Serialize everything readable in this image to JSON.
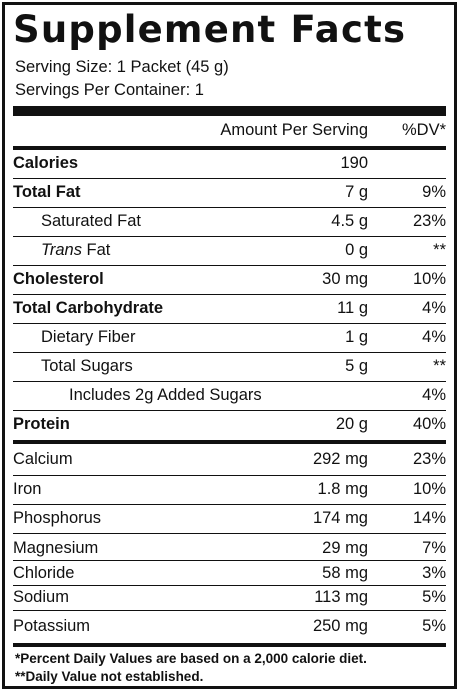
{
  "title": "Supplement Facts",
  "serving_size": "Serving Size: 1 Packet (45 g)",
  "servings_per_container": "Servings Per Container: 1",
  "header": {
    "amount": "Amount Per Serving",
    "dv": "%DV*"
  },
  "rows": [
    {
      "label": "Calories",
      "amount": "190",
      "dv": ""
    },
    {
      "label": "Total Fat",
      "amount": "7 g",
      "dv": "9%"
    },
    {
      "label": "Saturated Fat",
      "amount": "4.5 g",
      "dv": "23%"
    },
    {
      "label_italic": "Trans",
      "label_rest": " Fat",
      "amount": "0 g",
      "dv": "**"
    },
    {
      "label": "Cholesterol",
      "amount": "30 mg",
      "dv": "10%"
    },
    {
      "label": "Total Carbohydrate",
      "amount": "11 g",
      "dv": "4%"
    },
    {
      "label": "Dietary Fiber",
      "amount": "1 g",
      "dv": "4%"
    },
    {
      "label": "Total Sugars",
      "amount": "5 g",
      "dv": "**"
    },
    {
      "label": "Includes 2g Added Sugars",
      "amount": "",
      "dv": "4%"
    },
    {
      "label": "Protein",
      "amount": "20 g",
      "dv": "40%"
    },
    {
      "label": "Calcium",
      "amount": "292 mg",
      "dv": "23%"
    },
    {
      "label": "Iron",
      "amount": "1.8 mg",
      "dv": "10%"
    },
    {
      "label": "Phosphorus",
      "amount": "174 mg",
      "dv": "14%"
    },
    {
      "label": "Magnesium",
      "amount": "29 mg",
      "dv": "7%"
    },
    {
      "label": "Chloride",
      "amount": "58 mg",
      "dv": "3%"
    },
    {
      "label": "Sodium",
      "amount": "113 mg",
      "dv": "5%"
    },
    {
      "label": "Potassium",
      "amount": "250 mg",
      "dv": "5%"
    }
  ],
  "footnotes": [
    "*Percent Daily Values are based on a 2,000 calorie diet.",
    "**Daily Value not established."
  ]
}
